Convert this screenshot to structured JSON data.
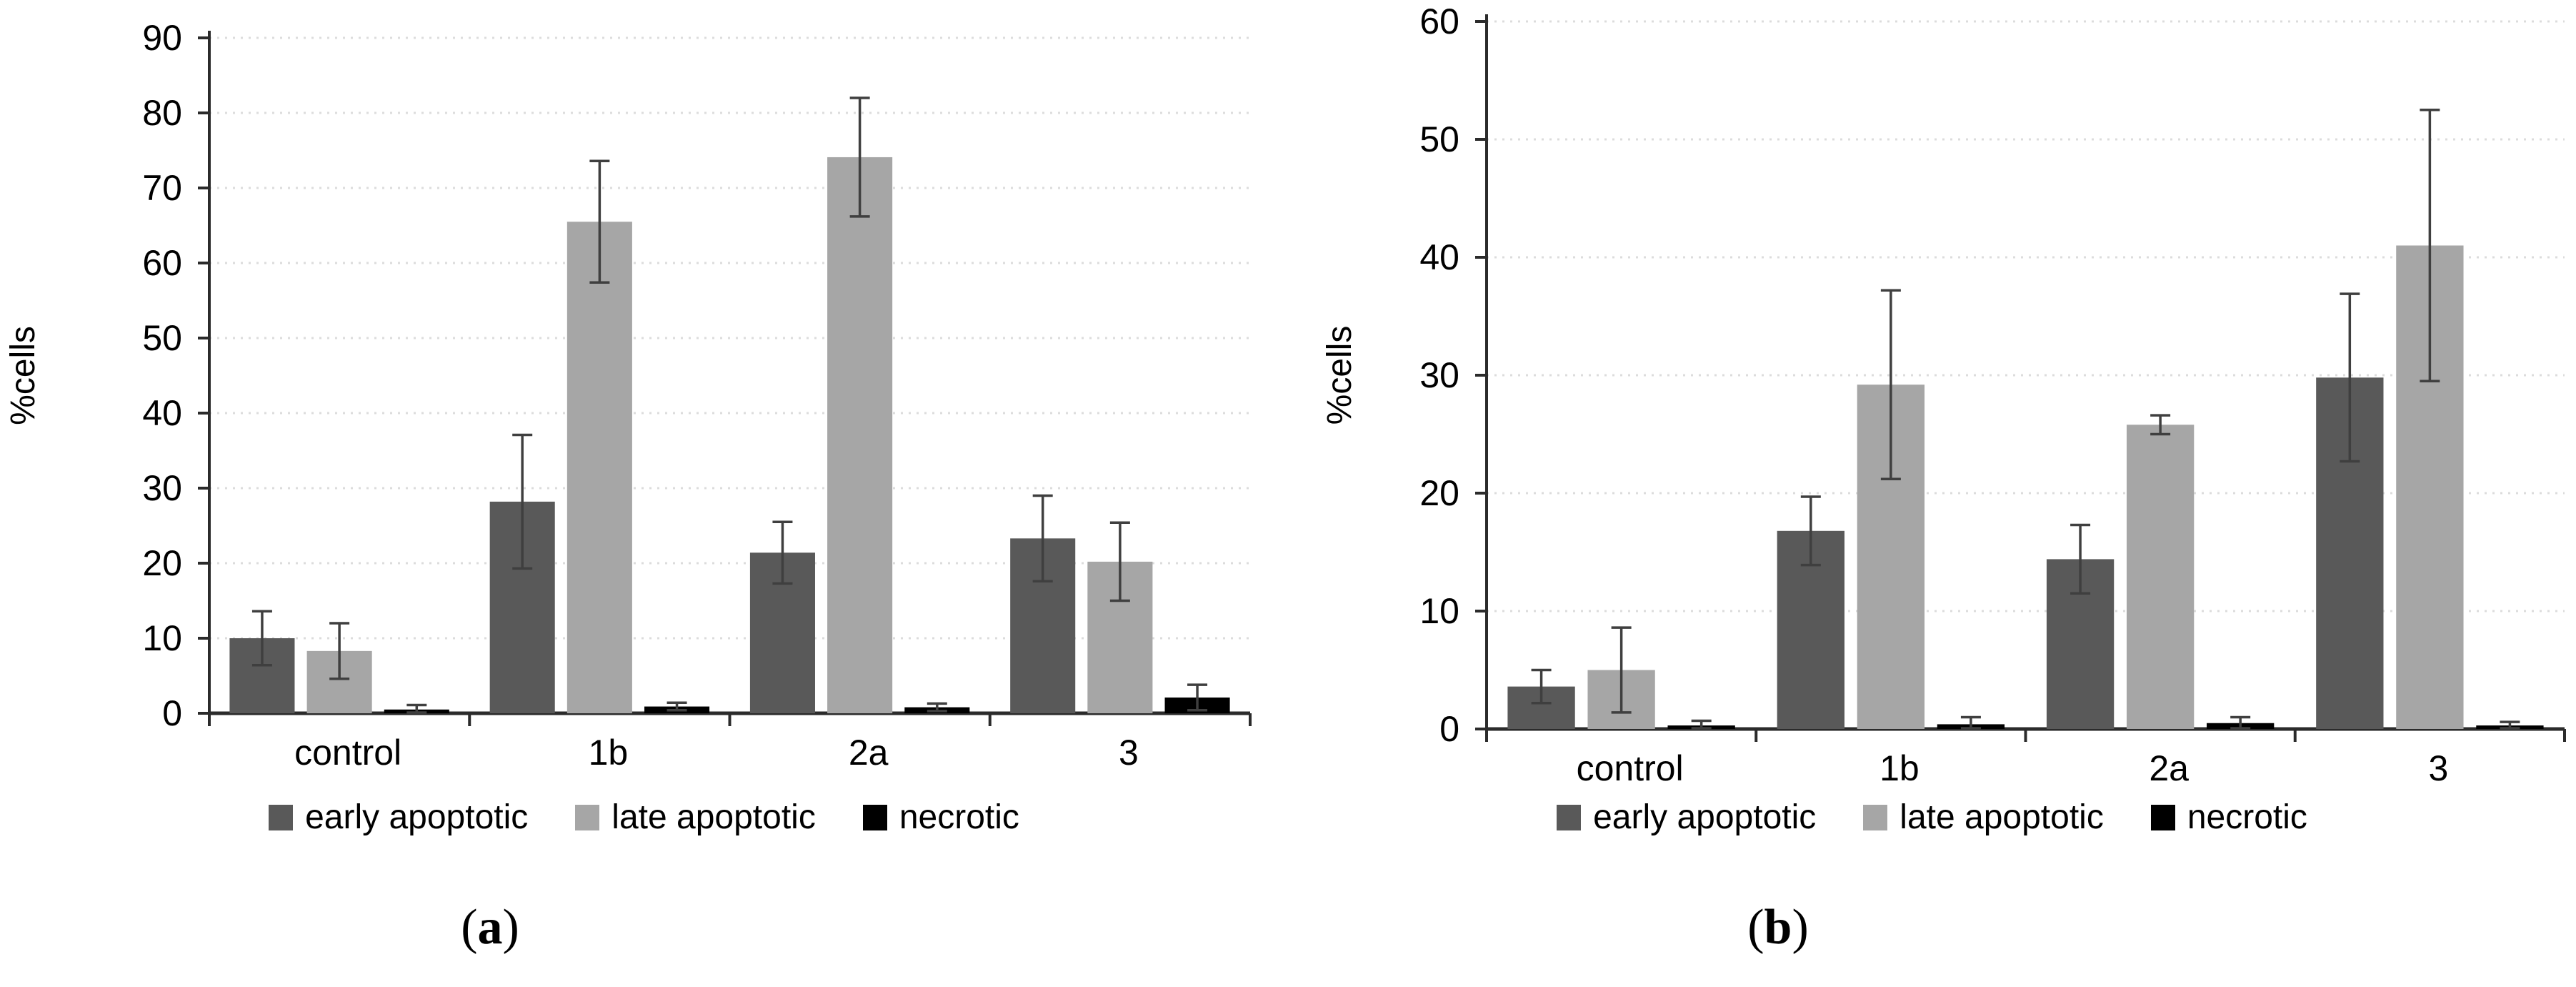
{
  "figure": {
    "background": "#ffffff",
    "text_color": "#000000",
    "grid_color": "#dcdcdc",
    "axis_color": "#2b2b2b",
    "error_bar_color": "#3f3f3f"
  },
  "chart_data": [
    {
      "type": "bar",
      "id": "a",
      "caption": {
        "open": "(",
        "letter": "a",
        "close": ")"
      },
      "ylabel": "%cells",
      "xlabel": "",
      "ylim": [
        0,
        90
      ],
      "yticks": [
        0,
        10,
        20,
        30,
        40,
        50,
        60,
        70,
        80,
        90
      ],
      "grid": "dotted",
      "legend_position": "bottom",
      "categories": [
        "control",
        "1b",
        "2a",
        "3"
      ],
      "series": [
        {
          "name": "early apoptotic",
          "color": "#595959",
          "values": [
            10.0,
            28.2,
            21.4,
            23.3
          ],
          "errors": [
            3.6,
            8.9,
            4.1,
            5.7
          ]
        },
        {
          "name": "late apoptotic",
          "color": "#a6a6a6",
          "values": [
            8.3,
            65.5,
            74.1,
            20.2
          ],
          "errors": [
            3.7,
            8.1,
            7.9,
            5.2
          ]
        },
        {
          "name": "necrotic",
          "color": "#000000",
          "values": [
            0.5,
            0.9,
            0.8,
            2.1
          ],
          "errors": [
            0.6,
            0.5,
            0.5,
            1.7
          ]
        }
      ]
    },
    {
      "type": "bar",
      "id": "b",
      "caption": {
        "open": "(",
        "letter": "b",
        "close": ")"
      },
      "ylabel": "%cells",
      "xlabel": "",
      "ylim": [
        0,
        60
      ],
      "yticks": [
        0,
        10,
        20,
        30,
        40,
        50,
        60
      ],
      "grid": "dotted",
      "legend_position": "bottom",
      "categories": [
        "control",
        "1b",
        "2a",
        "3"
      ],
      "series": [
        {
          "name": "early apoptotic",
          "color": "#595959",
          "values": [
            3.6,
            16.8,
            14.4,
            29.8
          ],
          "errors": [
            1.4,
            2.9,
            2.9,
            7.1
          ]
        },
        {
          "name": "late apoptotic",
          "color": "#a6a6a6",
          "values": [
            5.0,
            29.2,
            25.8,
            41.0
          ],
          "errors": [
            3.6,
            8.0,
            0.8,
            11.5
          ]
        },
        {
          "name": "necrotic",
          "color": "#000000",
          "values": [
            0.3,
            0.4,
            0.5,
            0.3
          ],
          "errors": [
            0.4,
            0.6,
            0.5,
            0.3
          ]
        }
      ]
    }
  ]
}
